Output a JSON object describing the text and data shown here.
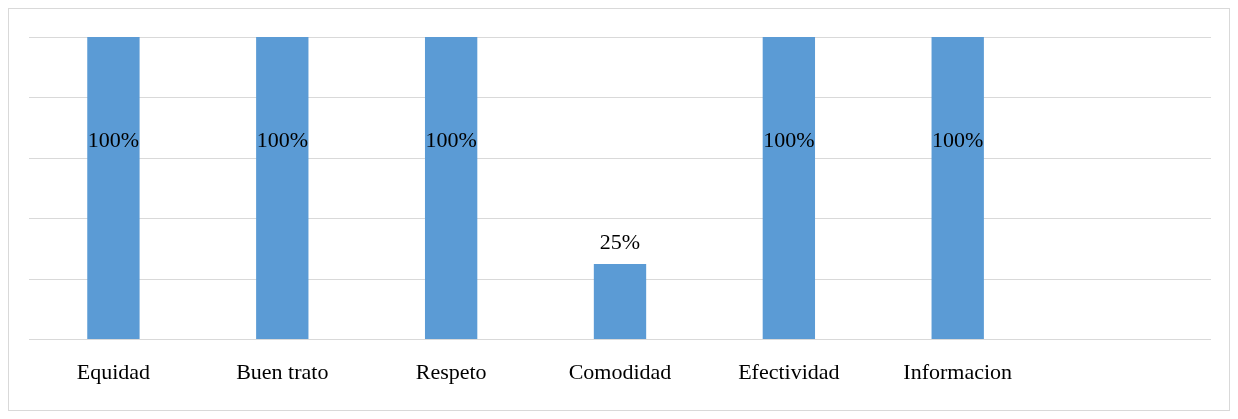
{
  "chart_data": {
    "type": "bar",
    "categories": [
      "Equidad",
      "Buen trato",
      "Respeto",
      "Comodidad",
      "Efectividad",
      "Informacion",
      null
    ],
    "values": [
      100,
      100,
      100,
      25,
      100,
      100,
      null
    ],
    "color": "#5b9bd5",
    "data_labels": true,
    "value_labels": [
      "100%",
      "100%",
      "100%",
      "25%",
      "100%",
      "100%",
      null
    ],
    "ylim": [
      0,
      100
    ],
    "yticks": [
      {
        "value": 0,
        "label": null
      },
      {
        "value": 20,
        "label": null
      },
      {
        "value": 40,
        "label": null
      },
      {
        "value": 60,
        "label": null
      },
      {
        "value": 80,
        "label": null
      },
      {
        "value": 100,
        "label": null
      }
    ],
    "grid": "y",
    "tick_labels": "x",
    "legend": false
  }
}
